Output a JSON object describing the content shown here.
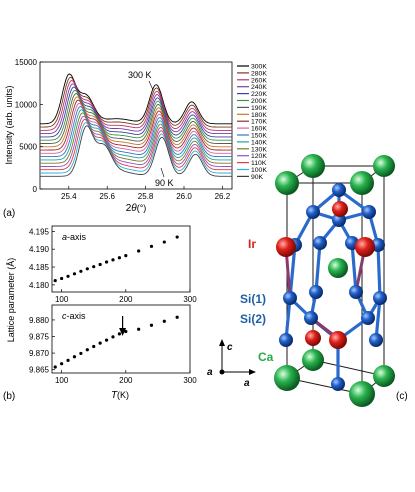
{
  "panel_labels": {
    "a": "(a)",
    "b": "(b)",
    "c": "(c)"
  },
  "chart_data": [
    {
      "type": "line",
      "panel": "(a)",
      "ylabel": "Intensity (arb. units)",
      "xlabel_symbol": "2",
      "xlabel_theta": "θ",
      "xlabel_unit": "(°)",
      "xlim": [
        25.25,
        26.25
      ],
      "ylim": [
        0,
        15000
      ],
      "xticks": [
        "25.4",
        "25.6",
        "25.8",
        "26.0",
        "26.2"
      ],
      "xtick_values": [
        25.4,
        25.6,
        25.8,
        26.0,
        26.2
      ],
      "yticks": [
        "0",
        "5000",
        "10000",
        "15000"
      ],
      "ytick_values": [
        0,
        5000,
        10000,
        15000
      ],
      "annotations": [
        "300 K",
        "90 K"
      ],
      "legend_position": "right",
      "series": [
        {
          "name": "300K",
          "color": "#000000"
        },
        {
          "name": "280K",
          "color": "#7a3b1a"
        },
        {
          "name": "260K",
          "color": "#c0306a"
        },
        {
          "name": "240K",
          "color": "#7a3fa0"
        },
        {
          "name": "220K",
          "color": "#3f3fa8"
        },
        {
          "name": "200K",
          "color": "#3a9a3a"
        },
        {
          "name": "190K",
          "color": "#5a5a5a"
        },
        {
          "name": "180K",
          "color": "#c07a2a"
        },
        {
          "name": "170K",
          "color": "#a02a2a"
        },
        {
          "name": "160K",
          "color": "#e060a0"
        },
        {
          "name": "150K",
          "color": "#2a7ac0"
        },
        {
          "name": "140K",
          "color": "#2aa0a0"
        },
        {
          "name": "130K",
          "color": "#7a7a2a"
        },
        {
          "name": "120K",
          "color": "#9a4fc0"
        },
        {
          "name": "110K",
          "color": "#e03a3a"
        },
        {
          "name": "100K",
          "color": "#2ab0e0"
        },
        {
          "name": "90K",
          "color": "#404040"
        }
      ]
    },
    {
      "type": "scatter",
      "panel": "(b)",
      "axis_name_a": "a",
      "axis_name_a_suffix": "-axis",
      "ylabel": "Lattice parameter (Å)",
      "ylim": [
        4.178,
        4.1965
      ],
      "yticks": [
        "4.180",
        "4.185",
        "4.190",
        "4.195"
      ],
      "ytick_values": [
        4.18,
        4.185,
        4.19,
        4.195
      ],
      "xlim": [
        85,
        300
      ],
      "xticks": [
        "100",
        "200",
        "300"
      ],
      "xtick_values": [
        100,
        200,
        300
      ],
      "x": [
        90,
        100,
        110,
        120,
        130,
        140,
        150,
        160,
        170,
        180,
        190,
        200,
        220,
        240,
        260,
        280
      ],
      "y": [
        4.1812,
        4.1818,
        4.1824,
        4.1831,
        4.1838,
        4.1845,
        4.1851,
        4.1857,
        4.1864,
        4.187,
        4.1876,
        4.1882,
        4.1895,
        4.1908,
        4.192,
        4.1934
      ]
    },
    {
      "type": "scatter",
      "panel": "(b)",
      "axis_name_c": "c",
      "axis_name_c_suffix": "-axis",
      "xlabel_symbol": "T",
      "xlabel_unit": "(K)",
      "ylim": [
        9.864,
        9.8845
      ],
      "yticks": [
        "9.865",
        "9.870",
        "9.875",
        "9.880"
      ],
      "ytick_values": [
        9.865,
        9.87,
        9.875,
        9.88
      ],
      "xlim": [
        85,
        300
      ],
      "xticks": [
        "100",
        "200",
        "300"
      ],
      "xtick_values": [
        100,
        200,
        300
      ],
      "arrow_at_x": 195,
      "x": [
        90,
        100,
        110,
        120,
        130,
        140,
        150,
        160,
        170,
        180,
        190,
        200,
        220,
        240,
        260,
        280
      ],
      "y": [
        9.8658,
        9.8668,
        9.8678,
        9.8689,
        9.8699,
        9.871,
        9.872,
        9.873,
        9.8739,
        9.8749,
        9.8758,
        9.8765,
        9.8772,
        9.8784,
        9.8796,
        9.8808
      ]
    }
  ],
  "crystal": {
    "labels": {
      "ir": "Ir",
      "si1": "Si(1)",
      "si2": "Si(2)",
      "ca": "Ca"
    },
    "label_colors": {
      "ir": "#e0201a",
      "si": "#1f5fa8",
      "ca": "#2aa84a"
    },
    "atom_colors": {
      "ir": "#e0201a",
      "si": "#1f5fc8",
      "ca": "#2ab34e"
    },
    "axes": {
      "a1": "a",
      "a2": "a",
      "c": "c"
    }
  }
}
